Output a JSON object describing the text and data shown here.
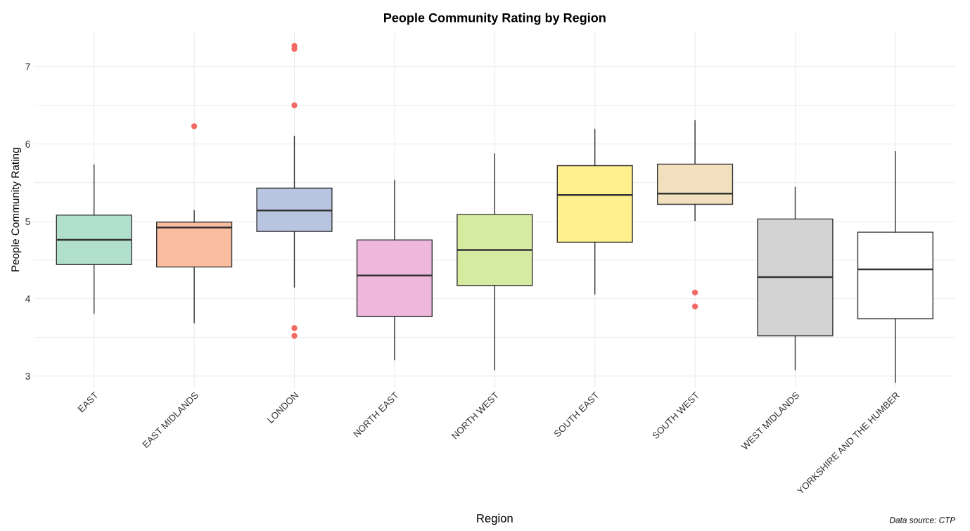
{
  "chart_data": {
    "type": "box",
    "title": "People Community Rating by Region",
    "xlabel": "Region",
    "ylabel": "People Community Rating",
    "categories": [
      "EAST",
      "EAST MIDLANDS",
      "LONDON",
      "NORTH EAST",
      "NORTH WEST",
      "SOUTH EAST",
      "SOUTH WEST",
      "WEST MIDLANDS",
      "YORKSHIRE AND THE HUMBER"
    ],
    "colors": [
      "#b0dfcb",
      "#fbbda0",
      "#b9c4e1",
      "#eeb8dc",
      "#d4eba0",
      "#ffef8d",
      "#f1dfbd",
      "#d3d3d3",
      "#ffffff"
    ],
    "boxes": [
      {
        "low": 3.81,
        "q1": 4.44,
        "median": 4.76,
        "q3": 5.08,
        "high": 5.73
      },
      {
        "low": 3.69,
        "q1": 4.41,
        "median": 4.92,
        "q3": 4.99,
        "high": 5.14,
        "outliers": [
          6.23
        ]
      },
      {
        "low": 4.15,
        "q1": 4.87,
        "median": 5.14,
        "q3": 5.43,
        "high": 6.1,
        "outliers": [
          7.27,
          7.23,
          6.5,
          3.62,
          3.52
        ]
      },
      {
        "low": 3.21,
        "q1": 3.77,
        "median": 4.3,
        "q3": 4.76,
        "high": 5.53
      },
      {
        "low": 3.08,
        "q1": 4.17,
        "median": 4.63,
        "q3": 5.09,
        "high": 5.87
      },
      {
        "low": 4.06,
        "q1": 4.73,
        "median": 5.34,
        "q3": 5.72,
        "high": 6.19
      },
      {
        "low": 5.01,
        "q1": 5.22,
        "median": 5.36,
        "q3": 5.74,
        "high": 6.3,
        "outliers": [
          4.08,
          3.9
        ]
      },
      {
        "low": 3.08,
        "q1": 3.52,
        "median": 4.28,
        "q3": 5.03,
        "high": 5.44
      },
      {
        "low": 2.92,
        "q1": 3.74,
        "median": 4.38,
        "q3": 4.86,
        "high": 5.9
      }
    ],
    "ylim": [
      2.85,
      7.45
    ],
    "yticks": [
      3,
      {
        "value": 3.5,
        "label": null
      },
      4,
      {
        "value": 4.5,
        "label": null
      },
      5,
      {
        "value": 5.5,
        "label": null
      },
      6,
      {
        "value": 6.5,
        "label": null
      },
      7
    ],
    "grid": true,
    "annotations": [
      "Data source: CTP"
    ]
  }
}
